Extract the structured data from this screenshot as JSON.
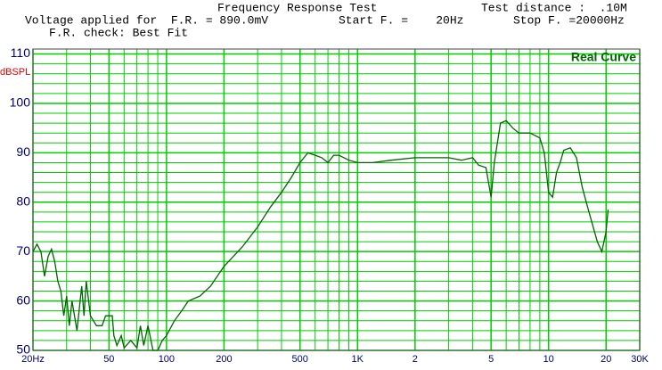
{
  "chart_data": {
    "type": "line",
    "header": {
      "title": "Frequency Response Test",
      "distance": "Test distance :  .10M",
      "voltage": "Voltage applied for  F.R. = 890.0mV",
      "start": "Start F. =    20Hz",
      "stop": "Stop F. =20000Hz",
      "check": "F.R. check: Best Fit"
    },
    "ylabel": "dBSPL",
    "curve_label": "Real Curve",
    "log_x": true,
    "grid": true,
    "grid_color": "#00cc00",
    "color": "#006400",
    "xlim": [
      20,
      30000
    ],
    "ylim": [
      50,
      111
    ],
    "xticks": [
      {
        "value": 20,
        "label": "20Hz"
      },
      50,
      100,
      200,
      500,
      {
        "value": 1000,
        "label": "1K"
      },
      {
        "value": 2000,
        "label": "2"
      },
      {
        "value": 5000,
        "label": "5"
      },
      {
        "value": 10000,
        "label": "10"
      },
      {
        "value": 20000,
        "label": "20"
      },
      {
        "value": 30000,
        "label": "30K"
      }
    ],
    "xgrid": [
      30,
      40,
      60,
      70,
      80,
      90,
      300,
      400,
      600,
      700,
      800,
      900,
      3000,
      4000,
      6000,
      7000,
      8000,
      9000
    ],
    "yticks": [
      50,
      60,
      70,
      80,
      90,
      100,
      110
    ],
    "ygrid": [
      52,
      54,
      56,
      58,
      62,
      64,
      66,
      68,
      72,
      74,
      76,
      78,
      82,
      84,
      86,
      88,
      92,
      94,
      96,
      98,
      102,
      104,
      106,
      108
    ],
    "x": [
      20,
      21,
      22,
      23,
      24,
      25,
      26,
      27,
      28,
      29,
      30,
      31,
      32,
      33,
      34,
      36,
      37,
      38,
      40,
      43,
      46,
      48,
      52,
      53,
      55,
      58,
      60,
      65,
      70,
      73,
      76,
      80,
      85,
      90,
      95,
      100,
      110,
      120,
      130,
      150,
      170,
      200,
      250,
      300,
      350,
      400,
      450,
      500,
      550,
      600,
      650,
      700,
      750,
      800,
      900,
      1000,
      1200,
      1500,
      2000,
      3000,
      3500,
      4000,
      4300,
      4700,
      5000,
      5200,
      5600,
      6000,
      6500,
      7000,
      8000,
      9000,
      9500,
      10000,
      10500,
      11000,
      11500,
      12000,
      13000,
      14000,
      15000,
      16000,
      18000,
      19000,
      20000,
      20500
    ],
    "values": [
      70,
      71.5,
      70,
      65,
      69,
      70.5,
      68,
      64,
      62,
      57,
      61,
      55,
      60,
      57,
      54,
      63,
      57,
      64,
      57,
      55,
      55,
      57,
      57,
      53,
      51,
      53,
      50.5,
      52,
      50.5,
      55,
      51,
      55,
      50,
      50,
      52,
      53,
      56,
      58,
      60,
      61,
      63,
      67,
      71,
      75,
      79,
      82,
      85,
      88,
      90,
      89.5,
      89,
      88,
      89.5,
      89.5,
      88.5,
      88,
      88,
      88.5,
      89,
      89,
      88.5,
      89,
      87.5,
      87,
      81,
      88,
      96,
      96.5,
      95,
      94,
      94,
      93,
      90,
      82,
      81,
      86,
      88,
      90.5,
      91,
      89,
      83,
      79,
      72,
      70,
      74,
      78.5
    ]
  }
}
